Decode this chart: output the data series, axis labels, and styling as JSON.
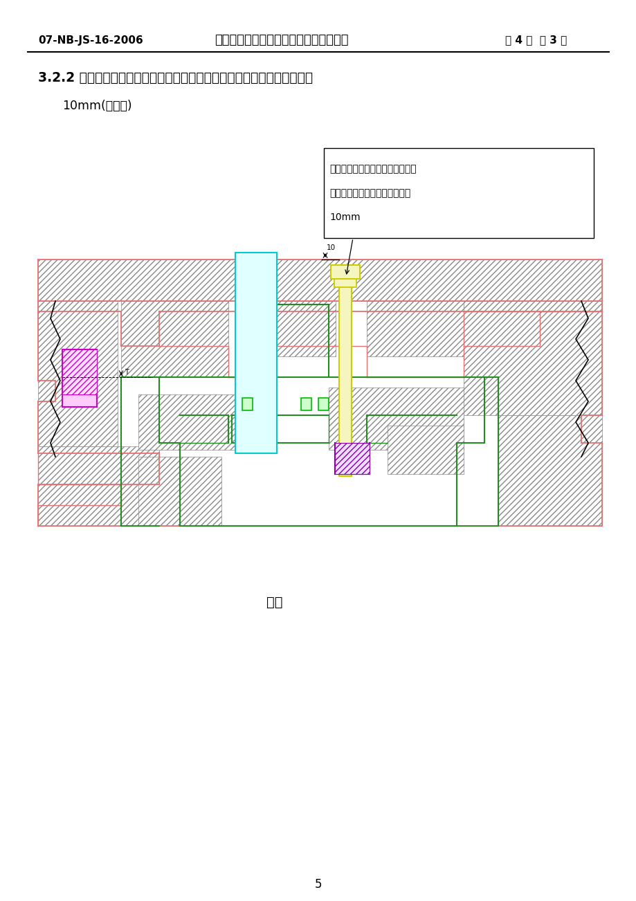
{
  "header_left": "07-NB-JS-16-2006",
  "header_center": "大众项目模具用缓冲聚氨酯弹簧选用规则",
  "header_right": "第 4 页  共 3 页",
  "section_title": "3.2.2 聚氨酯弹簧在受压料板自重压缩的状态下，打杆要求高出上底板底面",
  "section_body": "10mm(见图四)",
  "annotation_line1": "聚氨脂弹簧在受到压料板自重压缩",
  "annotation_line2": "的情况下，打杆高出上底板底面",
  "annotation_line3": "10mm",
  "caption": "图四",
  "page_num": "5",
  "bg_color": "#ffffff",
  "text_color": "#000000",
  "pink": "#e87070",
  "green": "#228b22",
  "magenta": "#cc00cc",
  "cyan": "#00cccc",
  "blue": "#0000cc",
  "yellow_green": "#cccc00",
  "purple": "#8800aa",
  "hatch_color": "#888888",
  "black": "#000000"
}
